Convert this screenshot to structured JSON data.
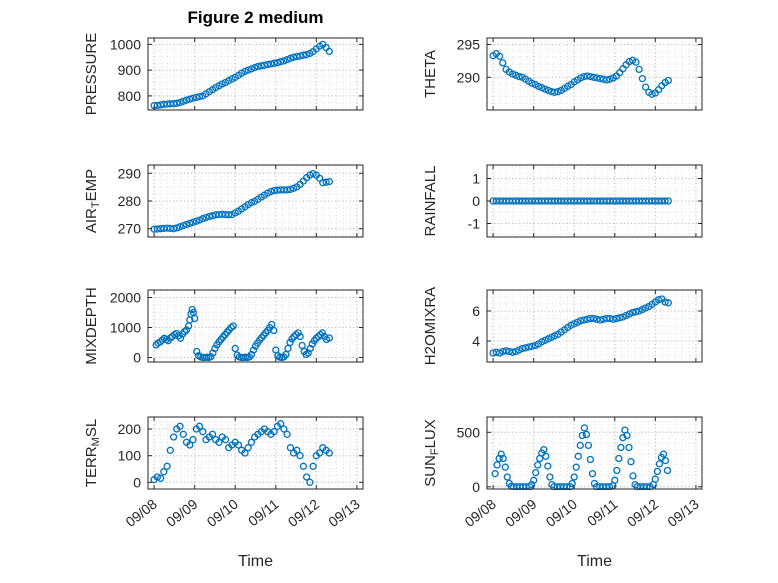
{
  "figure": {
    "title": "Figure 2 medium",
    "xlabel": "Time",
    "marker_color": "#0072BD",
    "axis_color": "#262626",
    "grid_major_color": "#b5b5b5",
    "grid_minor_color": "#dedede",
    "xlim": [
      -0.15,
      5.15
    ],
    "x_ticks": [
      0,
      1,
      2,
      3,
      4,
      5
    ],
    "x_tick_labels": [
      "09/08",
      "09/09",
      "09/10",
      "09/11",
      "09/12",
      "09/13"
    ],
    "x_minor_step": 0.1667
  },
  "chart_data": [
    {
      "type": "scatter",
      "ylabel": "PRESSURE",
      "row": 0,
      "col": 0,
      "ylim": [
        745,
        1025
      ],
      "yticks": [
        800,
        900,
        1000
      ],
      "y_minor_step": 25,
      "x": [
        0,
        0.08,
        0.16,
        0.24,
        0.32,
        0.4,
        0.48,
        0.56,
        0.64,
        0.72,
        0.8,
        0.88,
        0.96,
        1.04,
        1.12,
        1.2,
        1.28,
        1.36,
        1.44,
        1.52,
        1.6,
        1.68,
        1.76,
        1.84,
        1.92,
        2,
        2.08,
        2.16,
        2.24,
        2.32,
        2.4,
        2.48,
        2.56,
        2.64,
        2.72,
        2.8,
        2.88,
        2.96,
        3.04,
        3.12,
        3.2,
        3.28,
        3.36,
        3.44,
        3.52,
        3.6,
        3.68,
        3.76,
        3.84,
        3.92,
        4,
        4.08,
        4.16,
        4.24,
        4.32
      ],
      "y": [
        762,
        763,
        765,
        767,
        768,
        769,
        770,
        771,
        774,
        779,
        783,
        787,
        791,
        794,
        797,
        800,
        808,
        816,
        824,
        832,
        839,
        846,
        852,
        859,
        866,
        872,
        880,
        888,
        895,
        900,
        905,
        910,
        914,
        917,
        919,
        922,
        924,
        927,
        929,
        933,
        936,
        941,
        946,
        950,
        953,
        955,
        958,
        960,
        965,
        972,
        983,
        993,
        1000,
        988,
        973
      ]
    },
    {
      "type": "scatter",
      "ylabel": "THETA",
      "row": 0,
      "col": 1,
      "ylim": [
        285,
        296
      ],
      "yticks": [
        290,
        295
      ],
      "y_minor_step": 1,
      "x": [
        0,
        0.08,
        0.16,
        0.24,
        0.32,
        0.4,
        0.48,
        0.56,
        0.64,
        0.72,
        0.8,
        0.88,
        0.96,
        1.04,
        1.12,
        1.2,
        1.28,
        1.36,
        1.44,
        1.52,
        1.6,
        1.68,
        1.76,
        1.84,
        1.92,
        2,
        2.08,
        2.16,
        2.24,
        2.32,
        2.4,
        2.48,
        2.56,
        2.64,
        2.72,
        2.8,
        2.88,
        2.96,
        3.04,
        3.12,
        3.2,
        3.28,
        3.36,
        3.44,
        3.52,
        3.6,
        3.68,
        3.76,
        3.84,
        3.92,
        4,
        4.08,
        4.16,
        4.24,
        4.32
      ],
      "y": [
        293.3,
        293.6,
        293.2,
        292.2,
        291.2,
        290.8,
        290.5,
        290.3,
        290.1,
        290,
        289.7,
        289.4,
        289.1,
        288.9,
        288.6,
        288.4,
        288.2,
        288,
        287.8,
        287.7,
        287.8,
        288,
        288.3,
        288.6,
        288.9,
        289.3,
        289.6,
        289.9,
        290.1,
        290.2,
        290.1,
        290,
        289.9,
        289.8,
        289.7,
        289.6,
        289.7,
        289.9,
        290.2,
        290.7,
        291.3,
        291.9,
        292.4,
        292.6,
        292.3,
        291.2,
        289.8,
        288.5,
        287.7,
        287.4,
        287.6,
        288.1,
        288.7,
        289.2,
        289.5
      ]
    },
    {
      "type": "scatter",
      "ylabel": "AIR_TEMP",
      "row": 1,
      "col": 0,
      "ylim": [
        267,
        293
      ],
      "yticks": [
        270,
        280,
        290
      ],
      "y_minor_step": 2.5,
      "x": [
        0,
        0.08,
        0.16,
        0.24,
        0.32,
        0.4,
        0.48,
        0.56,
        0.64,
        0.72,
        0.8,
        0.88,
        0.96,
        1.04,
        1.12,
        1.2,
        1.28,
        1.36,
        1.44,
        1.52,
        1.6,
        1.68,
        1.76,
        1.84,
        1.92,
        2,
        2.08,
        2.16,
        2.24,
        2.32,
        2.4,
        2.48,
        2.56,
        2.64,
        2.72,
        2.8,
        2.88,
        2.96,
        3.04,
        3.12,
        3.2,
        3.28,
        3.36,
        3.44,
        3.52,
        3.6,
        3.68,
        3.76,
        3.84,
        3.92,
        4,
        4.08,
        4.16,
        4.24,
        4.32
      ],
      "y": [
        269.8,
        269.9,
        270,
        270.1,
        270.2,
        270.1,
        270,
        270.3,
        270.7,
        271.1,
        271.5,
        271.9,
        272.3,
        272.7,
        273.1,
        273.6,
        274,
        274.4,
        274.7,
        275,
        275.1,
        275.2,
        275.1,
        275,
        275.1,
        275.7,
        276.3,
        277.1,
        277.9,
        278.7,
        279.4,
        279.9,
        280.6,
        281.4,
        282.1,
        282.8,
        283.4,
        283.8,
        283.9,
        284,
        284,
        284,
        284.2,
        284.6,
        285.1,
        286,
        287.2,
        288.4,
        289.4,
        289.9,
        289.3,
        288.2,
        286.6,
        286.8,
        287
      ]
    },
    {
      "type": "scatter",
      "ylabel": "RAINFALL",
      "row": 1,
      "col": 1,
      "ylim": [
        -1.6,
        1.6
      ],
      "yticks": [
        -1,
        0,
        1
      ],
      "y_minor_step": 0.5,
      "x": [
        0,
        0.08,
        0.16,
        0.24,
        0.32,
        0.4,
        0.48,
        0.56,
        0.64,
        0.72,
        0.8,
        0.88,
        0.96,
        1.04,
        1.12,
        1.2,
        1.28,
        1.36,
        1.44,
        1.52,
        1.6,
        1.68,
        1.76,
        1.84,
        1.92,
        2,
        2.08,
        2.16,
        2.24,
        2.32,
        2.4,
        2.48,
        2.56,
        2.64,
        2.72,
        2.8,
        2.88,
        2.96,
        3.04,
        3.12,
        3.2,
        3.28,
        3.36,
        3.44,
        3.52,
        3.6,
        3.68,
        3.76,
        3.84,
        3.92,
        4,
        4.08,
        4.16,
        4.24,
        4.32
      ],
      "y": [
        0,
        0,
        0,
        0,
        0,
        0,
        0,
        0,
        0,
        0,
        0,
        0,
        0,
        0,
        0,
        0,
        0,
        0,
        0,
        0,
        0,
        0,
        0,
        0,
        0,
        0,
        0,
        0,
        0,
        0,
        0,
        0,
        0,
        0,
        0,
        0,
        0,
        0,
        0,
        0,
        0,
        0,
        0,
        0,
        0,
        0,
        0,
        0,
        0,
        0,
        0,
        0,
        0,
        0,
        0
      ]
    },
    {
      "type": "scatter",
      "ylabel": "MIXDEPTH",
      "row": 2,
      "col": 0,
      "ylim": [
        -150,
        2250
      ],
      "yticks": [
        0,
        1000,
        2000
      ],
      "y_minor_step": 250,
      "x": [
        0.05,
        0.1,
        0.15,
        0.2,
        0.25,
        0.3,
        0.35,
        0.4,
        0.45,
        0.5,
        0.55,
        0.6,
        0.65,
        0.7,
        0.75,
        0.8,
        0.85,
        0.88,
        0.91,
        0.94,
        0.97,
        1,
        1.05,
        1.1,
        1.15,
        1.2,
        1.25,
        1.3,
        1.35,
        1.4,
        1.45,
        1.5,
        1.55,
        1.6,
        1.65,
        1.7,
        1.75,
        1.8,
        1.85,
        1.9,
        1.95,
        2,
        2.05,
        2.1,
        2.15,
        2.2,
        2.25,
        2.3,
        2.35,
        2.4,
        2.45,
        2.5,
        2.55,
        2.6,
        2.65,
        2.7,
        2.75,
        2.8,
        2.85,
        2.9,
        2.95,
        3,
        3.05,
        3.1,
        3.15,
        3.2,
        3.25,
        3.3,
        3.35,
        3.4,
        3.45,
        3.5,
        3.55,
        3.6,
        3.65,
        3.7,
        3.75,
        3.8,
        3.85,
        3.9,
        3.95,
        4,
        4.05,
        4.1,
        4.15,
        4.2,
        4.25,
        4.32
      ],
      "y": [
        420,
        480,
        520,
        580,
        640,
        600,
        560,
        650,
        700,
        760,
        800,
        720,
        640,
        780,
        860,
        920,
        1050,
        1250,
        1450,
        1600,
        1500,
        1300,
        200,
        60,
        20,
        0,
        0,
        10,
        0,
        30,
        150,
        300,
        420,
        520,
        600,
        680,
        760,
        840,
        920,
        1000,
        1050,
        300,
        80,
        20,
        0,
        0,
        10,
        0,
        20,
        100,
        250,
        380,
        480,
        580,
        660,
        740,
        820,
        900,
        1000,
        1100,
        900,
        250,
        60,
        10,
        0,
        20,
        100,
        300,
        500,
        620,
        700,
        760,
        820,
        700,
        400,
        200,
        100,
        150,
        300,
        450,
        560,
        640,
        700,
        760,
        820,
        700,
        600,
        650
      ]
    },
    {
      "type": "scatter",
      "ylabel": "H2OMIXRA",
      "row": 2,
      "col": 1,
      "ylim": [
        2.6,
        7.4
      ],
      "yticks": [
        4,
        6
      ],
      "y_minor_step": 0.5,
      "x": [
        0,
        0.08,
        0.16,
        0.24,
        0.32,
        0.4,
        0.48,
        0.56,
        0.64,
        0.72,
        0.8,
        0.88,
        0.96,
        1.04,
        1.12,
        1.2,
        1.28,
        1.36,
        1.44,
        1.52,
        1.6,
        1.68,
        1.76,
        1.84,
        1.92,
        2,
        2.08,
        2.16,
        2.24,
        2.32,
        2.4,
        2.48,
        2.56,
        2.64,
        2.72,
        2.8,
        2.88,
        2.96,
        3.04,
        3.12,
        3.2,
        3.28,
        3.36,
        3.44,
        3.52,
        3.6,
        3.68,
        3.76,
        3.84,
        3.92,
        4,
        4.08,
        4.16,
        4.24,
        4.32
      ],
      "y": [
        3.2,
        3.25,
        3.2,
        3.3,
        3.35,
        3.3,
        3.25,
        3.3,
        3.4,
        3.5,
        3.55,
        3.6,
        3.65,
        3.7,
        3.8,
        3.95,
        4.05,
        4.15,
        4.25,
        4.35,
        4.45,
        4.6,
        4.75,
        4.9,
        5.05,
        5.15,
        5.25,
        5.35,
        5.4,
        5.45,
        5.5,
        5.5,
        5.45,
        5.4,
        5.45,
        5.5,
        5.5,
        5.45,
        5.5,
        5.55,
        5.6,
        5.7,
        5.8,
        5.9,
        5.95,
        6,
        6.1,
        6.2,
        6.3,
        6.45,
        6.6,
        6.75,
        6.8,
        6.6,
        6.55
      ]
    },
    {
      "type": "scatter",
      "ylabel": "TERR_MSL",
      "row": 3,
      "col": 0,
      "ylim": [
        -25,
        245
      ],
      "yticks": [
        0,
        100,
        200
      ],
      "y_minor_step": 25,
      "x": [
        0,
        0.08,
        0.16,
        0.24,
        0.32,
        0.4,
        0.48,
        0.56,
        0.64,
        0.72,
        0.8,
        0.88,
        0.96,
        1.04,
        1.12,
        1.2,
        1.28,
        1.36,
        1.44,
        1.52,
        1.6,
        1.68,
        1.76,
        1.84,
        1.92,
        2,
        2.08,
        2.16,
        2.24,
        2.32,
        2.4,
        2.48,
        2.56,
        2.64,
        2.72,
        2.8,
        2.88,
        2.96,
        3.04,
        3.12,
        3.2,
        3.28,
        3.36,
        3.44,
        3.52,
        3.6,
        3.68,
        3.76,
        3.84,
        3.92,
        4,
        4.08,
        4.16,
        4.24,
        4.32
      ],
      "y": [
        10,
        20,
        15,
        40,
        60,
        120,
        170,
        200,
        210,
        180,
        150,
        140,
        160,
        200,
        210,
        190,
        160,
        170,
        180,
        160,
        150,
        170,
        160,
        130,
        140,
        150,
        140,
        120,
        110,
        130,
        150,
        170,
        180,
        190,
        200,
        190,
        180,
        190,
        210,
        220,
        200,
        180,
        130,
        110,
        120,
        100,
        60,
        20,
        0,
        60,
        100,
        110,
        130,
        120,
        110
      ]
    },
    {
      "type": "scatter",
      "ylabel": "SUN_FLUX",
      "row": 3,
      "col": 1,
      "ylim": [
        -20,
        640
      ],
      "yticks": [
        0,
        500
      ],
      "y_minor_step": 100,
      "x": [
        0.05,
        0.1,
        0.15,
        0.2,
        0.25,
        0.3,
        0.35,
        0.4,
        0.45,
        0.5,
        0.58,
        0.66,
        0.74,
        0.82,
        0.9,
        0.95,
        1,
        1.05,
        1.1,
        1.15,
        1.2,
        1.25,
        1.3,
        1.35,
        1.4,
        1.45,
        1.5,
        1.58,
        1.66,
        1.74,
        1.82,
        1.9,
        1.95,
        2,
        2.05,
        2.1,
        2.15,
        2.2,
        2.25,
        2.3,
        2.35,
        2.4,
        2.45,
        2.5,
        2.55,
        2.63,
        2.71,
        2.79,
        2.87,
        2.95,
        3,
        3.05,
        3.1,
        3.15,
        3.2,
        3.25,
        3.3,
        3.35,
        3.4,
        3.45,
        3.5,
        3.55,
        3.63,
        3.71,
        3.79,
        3.87,
        3.95,
        4,
        4.05,
        4.1,
        4.15,
        4.2,
        4.25,
        4.3
      ],
      "y": [
        120,
        200,
        260,
        300,
        260,
        180,
        90,
        30,
        5,
        0,
        0,
        0,
        0,
        0,
        0,
        20,
        60,
        130,
        200,
        260,
        310,
        340,
        280,
        190,
        90,
        20,
        0,
        0,
        0,
        0,
        0,
        0,
        30,
        90,
        180,
        280,
        380,
        470,
        540,
        480,
        380,
        250,
        120,
        30,
        0,
        0,
        0,
        0,
        0,
        10,
        60,
        150,
        260,
        360,
        450,
        520,
        470,
        360,
        230,
        100,
        20,
        0,
        0,
        0,
        0,
        0,
        20,
        70,
        140,
        210,
        270,
        300,
        240,
        150
      ]
    }
  ]
}
